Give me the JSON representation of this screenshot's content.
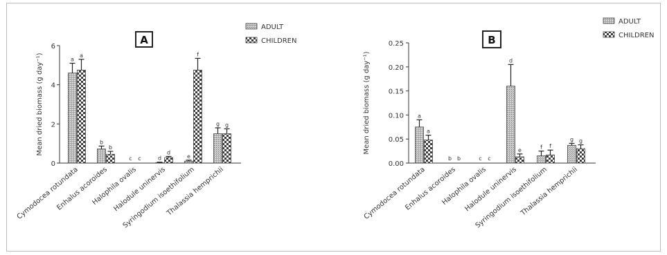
{
  "chart_data": [
    {
      "type": "bar",
      "panel_label": "A",
      "ylabel": "Mean dried biomass (g day⁻¹)",
      "ylim": [
        0,
        6
      ],
      "yticks": [
        "0",
        "2",
        "4",
        "6"
      ],
      "grid": false,
      "legend": "top-right",
      "categories": [
        "Cymodocea rotundata",
        "Enhalus acoroides",
        "Halophila ovalis",
        "Halodule uninervis",
        "Syringodium isoethifolium",
        "Thalassia hemprichii"
      ],
      "series": [
        {
          "name": "ADULT",
          "values": [
            4.6,
            0.72,
            0,
            0.02,
            0.1,
            1.5
          ],
          "errors": [
            0.5,
            0.15,
            0,
            0.03,
            0.05,
            0.3
          ],
          "labels": [
            "a",
            "b",
            "c",
            "d",
            "e",
            "g"
          ]
        },
        {
          "name": "CHILDREN",
          "values": [
            4.75,
            0.45,
            0,
            0.28,
            4.75,
            1.5
          ],
          "errors": [
            0.55,
            0.15,
            0,
            0.06,
            0.6,
            0.25
          ],
          "labels": [
            "a",
            "b",
            "c",
            "d",
            "f",
            "g"
          ]
        }
      ]
    },
    {
      "type": "bar",
      "panel_label": "B",
      "ylabel": "Mean dried biomass (g day⁻¹)",
      "ylim": [
        0,
        0.25
      ],
      "yticks": [
        "0.00",
        "0.05",
        "0.10",
        "0.15",
        "0.20",
        "0.25"
      ],
      "grid": false,
      "legend": "top-right",
      "categories": [
        "Cymodocea rotundata",
        "Enhalus acoroides",
        "Halophila ovalis",
        "Halodule uninervis",
        "Syringodium isoethifolium",
        "Thalassia hemprichii"
      ],
      "series": [
        {
          "name": "ADULT",
          "values": [
            0.075,
            0,
            0,
            0.16,
            0.015,
            0.037
          ],
          "errors": [
            0.015,
            0,
            0,
            0.045,
            0.01,
            0.004
          ],
          "labels": [
            "a",
            "b",
            "c",
            "d",
            "f",
            "g"
          ]
        },
        {
          "name": "CHILDREN",
          "values": [
            0.048,
            0,
            0,
            0.013,
            0.017,
            0.03
          ],
          "errors": [
            0.01,
            0,
            0,
            0.006,
            0.01,
            0.008
          ],
          "labels": [
            "a",
            "b",
            "c",
            "e",
            "f",
            "g"
          ]
        }
      ]
    }
  ]
}
